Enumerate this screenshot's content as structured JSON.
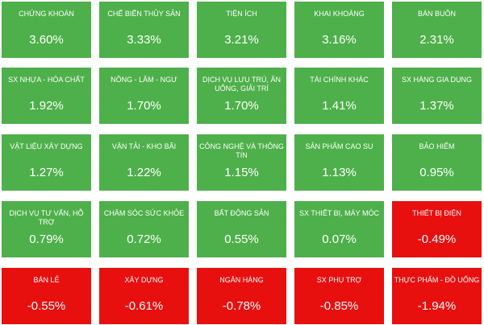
{
  "colors": {
    "positive": "#4eb04a",
    "negative": "#e80f0f",
    "text": "#ffffff"
  },
  "chart_data": {
    "type": "heatmap",
    "title": "",
    "unit": "%",
    "cells": [
      {
        "label": "CHỨNG KHOÁN",
        "value": 3.6,
        "display": "3.60%"
      },
      {
        "label": "CHẾ BIẾN THỦY SẢN",
        "value": 3.33,
        "display": "3.33%"
      },
      {
        "label": "TIỆN ÍCH",
        "value": 3.21,
        "display": "3.21%"
      },
      {
        "label": "KHAI KHOÁNG",
        "value": 3.16,
        "display": "3.16%"
      },
      {
        "label": "BÁN BUÔN",
        "value": 2.31,
        "display": "2.31%"
      },
      {
        "label": "SX NHỰA - HÓA CHẤT",
        "value": 1.92,
        "display": "1.92%"
      },
      {
        "label": "NÔNG - LÂM - NGƯ",
        "value": 1.7,
        "display": "1.70%"
      },
      {
        "label": "DỊCH VỤ LƯU TRÚ, ĂN UỐNG, GIẢI TRÍ",
        "value": 1.7,
        "display": "1.70%"
      },
      {
        "label": "TÀI CHÍNH KHÁC",
        "value": 1.41,
        "display": "1.41%"
      },
      {
        "label": "SX HÀNG GIA DỤNG",
        "value": 1.37,
        "display": "1.37%"
      },
      {
        "label": "VẬT LIỆU XÂY DỰNG",
        "value": 1.27,
        "display": "1.27%"
      },
      {
        "label": "VẬN TẢI - KHO BÃI",
        "value": 1.22,
        "display": "1.22%"
      },
      {
        "label": "CÔNG NGHỆ VÀ THÔNG TIN",
        "value": 1.15,
        "display": "1.15%"
      },
      {
        "label": "SẢN PHẨM CAO SU",
        "value": 1.13,
        "display": "1.13%"
      },
      {
        "label": "BẢO HIỂM",
        "value": 0.95,
        "display": "0.95%"
      },
      {
        "label": "DỊCH VỤ TƯ VẤN, HỖ TRỢ",
        "value": 0.79,
        "display": "0.79%"
      },
      {
        "label": "CHĂM SÓC SỨC KHỎE",
        "value": 0.72,
        "display": "0.72%"
      },
      {
        "label": "BẤT ĐỘNG SẢN",
        "value": 0.55,
        "display": "0.55%"
      },
      {
        "label": "SX THIẾT BỊ, MÁY MÓC",
        "value": 0.07,
        "display": "0.07%"
      },
      {
        "label": "THIẾT BỊ ĐIỆN",
        "value": -0.49,
        "display": "-0.49%"
      },
      {
        "label": "BÁN LẺ",
        "value": -0.55,
        "display": "-0.55%"
      },
      {
        "label": "XÂY DỰNG",
        "value": -0.61,
        "display": "-0.61%"
      },
      {
        "label": "NGÂN HÀNG",
        "value": -0.78,
        "display": "-0.78%"
      },
      {
        "label": "SX PHỤ TRỢ",
        "value": -0.85,
        "display": "-0.85%"
      },
      {
        "label": "THỰC PHẨM - ĐỒ UỐNG",
        "value": -1.94,
        "display": "-1.94%"
      }
    ]
  }
}
